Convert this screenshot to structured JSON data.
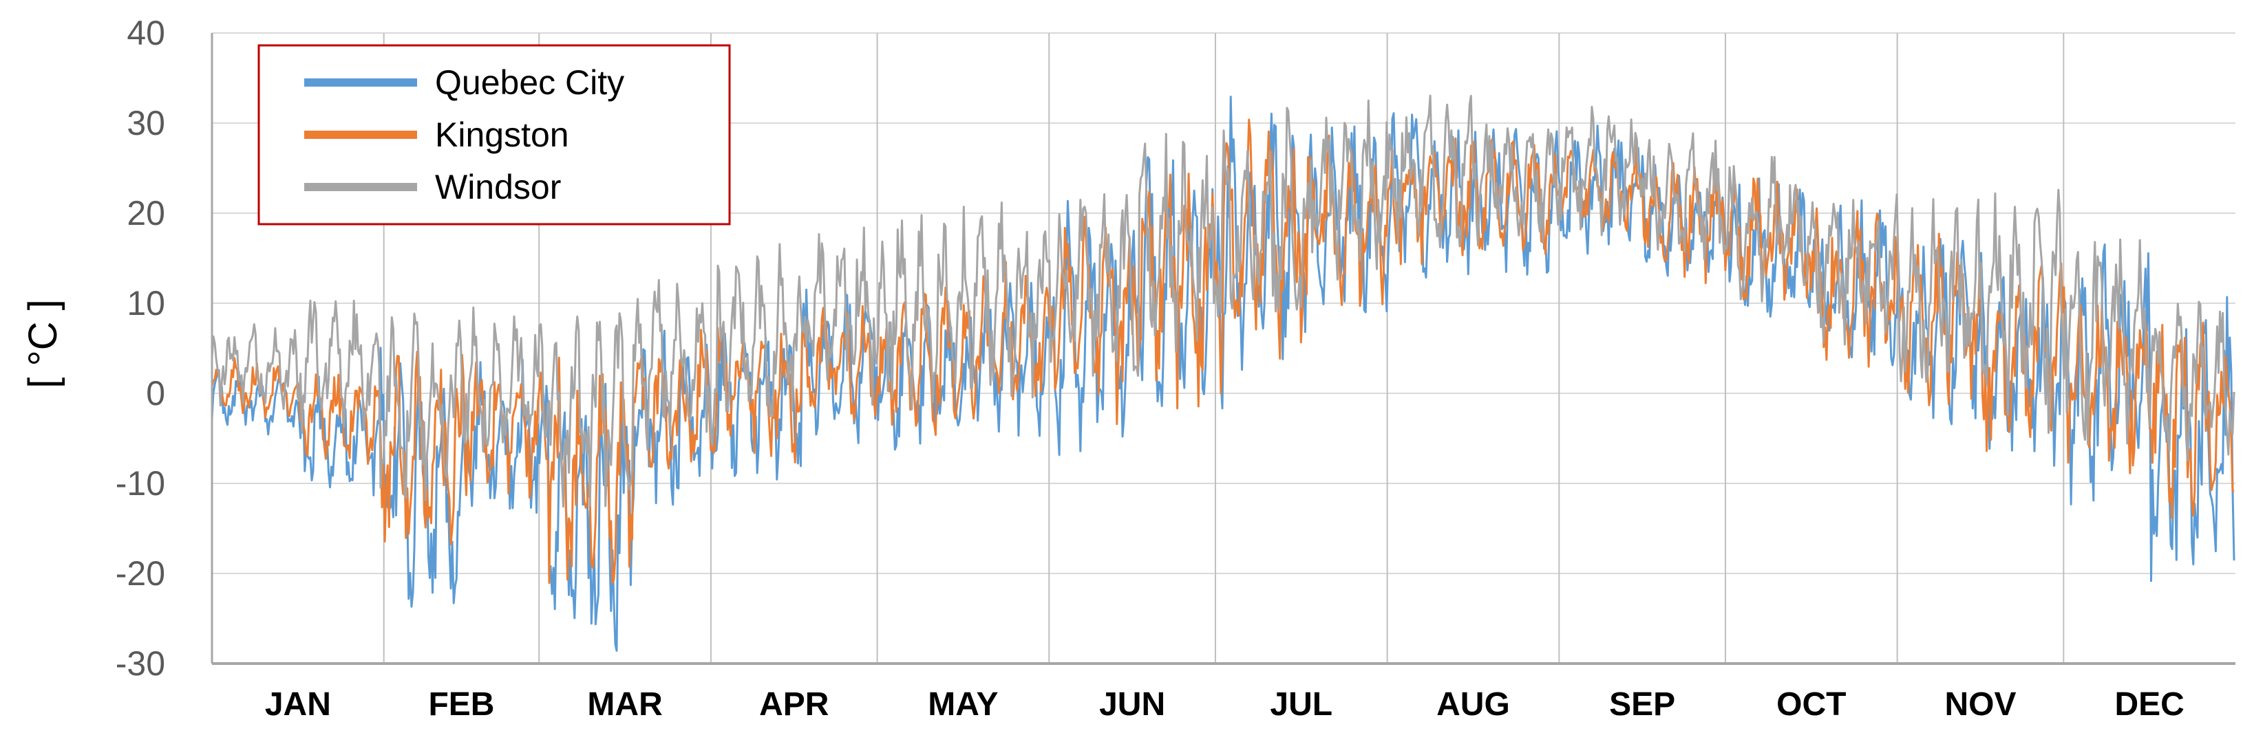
{
  "chart_data": {
    "type": "line",
    "title": "",
    "xlabel": "",
    "ylabel": "[ °C ]",
    "ylim": [
      -30,
      40
    ],
    "yticks": [
      40,
      30,
      20,
      10,
      0,
      -10,
      -20,
      -30
    ],
    "ytick_labels": [
      "40",
      "30",
      "20",
      "10",
      "0",
      "-10",
      "-20",
      "-30"
    ],
    "categories": [
      "JAN",
      "FEB",
      "MAR",
      "APR",
      "MAY",
      "JUN",
      "JUL",
      "AUG",
      "SEP",
      "OCT",
      "NOV",
      "DEC"
    ],
    "grid": true,
    "legend_position": "top-left",
    "series": [
      {
        "name": "Quebec City",
        "color": "#5B9BD5",
        "description_values": "hourly-like temperature trace; monthly approximate min/max shown as envelope",
        "values": [
          [
            -5,
            3
          ],
          [
            -12,
            2
          ],
          [
            -26,
            6
          ],
          [
            -15,
            4
          ],
          [
            -30,
            2
          ],
          [
            -14,
            7
          ],
          [
            -10,
            8
          ],
          [
            -6,
            12
          ],
          [
            -7,
            10
          ],
          [
            -5,
            14
          ],
          [
            -8,
            22
          ],
          [
            -4,
            28
          ],
          [
            1,
            33
          ],
          [
            8,
            32
          ],
          [
            12,
            33
          ],
          [
            13,
            30
          ],
          [
            15,
            30
          ],
          [
            13,
            26
          ],
          [
            7,
            24
          ],
          [
            2,
            22
          ],
          [
            -4,
            19
          ],
          [
            -9,
            14
          ],
          [
            -13,
            18
          ],
          [
            -24,
            11
          ]
        ]
      },
      {
        "name": "Kingston",
        "color": "#ED7D31",
        "values": [
          [
            -3,
            4
          ],
          [
            -8,
            3
          ],
          [
            -18,
            6
          ],
          [
            -12,
            5
          ],
          [
            -23,
            4
          ],
          [
            -11,
            8
          ],
          [
            -8,
            9
          ],
          [
            -4,
            11
          ],
          [
            -5,
            12
          ],
          [
            -3,
            15
          ],
          [
            -4,
            21
          ],
          [
            -2,
            27
          ],
          [
            3,
            31
          ],
          [
            9,
            29
          ],
          [
            14,
            30
          ],
          [
            15,
            29
          ],
          [
            16,
            29
          ],
          [
            12,
            26
          ],
          [
            9,
            25
          ],
          [
            2,
            21
          ],
          [
            -2,
            18
          ],
          [
            -8,
            15
          ],
          [
            -10,
            13
          ],
          [
            -15,
            10
          ]
        ]
      },
      {
        "name": "Windsor",
        "color": "#A5A5A5",
        "values": [
          [
            -2,
            8
          ],
          [
            -5,
            12
          ],
          [
            -13,
            10
          ],
          [
            -8,
            10
          ],
          [
            -15,
            11
          ],
          [
            -8,
            14
          ],
          [
            -5,
            17
          ],
          [
            -2,
            20
          ],
          [
            -3,
            21
          ],
          [
            -1,
            22
          ],
          [
            0,
            24
          ],
          [
            3,
            30
          ],
          [
            6,
            32
          ],
          [
            12,
            33
          ],
          [
            15,
            35
          ],
          [
            16,
            31
          ],
          [
            17,
            33
          ],
          [
            14,
            29
          ],
          [
            10,
            27
          ],
          [
            4,
            25
          ],
          [
            -1,
            23
          ],
          [
            -5,
            24
          ],
          [
            -7,
            19
          ],
          [
            -8,
            11
          ]
        ]
      }
    ]
  }
}
